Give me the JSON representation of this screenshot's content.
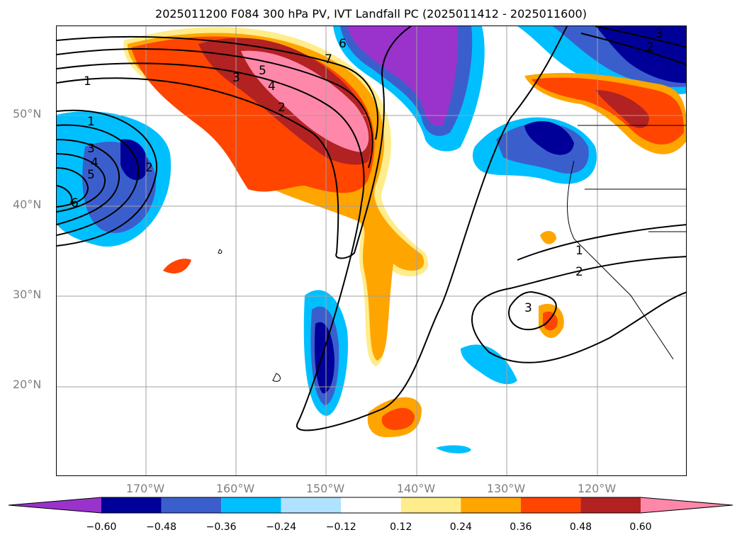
{
  "title": "2025011200 F084 300 hPa PV, IVT Landfall PC (2025011412 - 2025011600)",
  "lat_labels": [
    "50°N",
    "40°N",
    "30°N",
    "20°N"
  ],
  "lon_labels": [
    "170°W",
    "160°W",
    "150°W",
    "140°W",
    "130°W",
    "120°W"
  ],
  "colorbar": {
    "ticks": [
      "−0.60",
      "−0.48",
      "−0.36",
      "−0.24",
      "−0.12",
      "0.12",
      "0.24",
      "0.36",
      "0.48",
      "0.60"
    ],
    "colors": [
      "#9933cc",
      "#000099",
      "#3a5fcd",
      "#00bfff",
      "#b0e2ff",
      "#ffffff",
      "#ffec8b",
      "#ffa500",
      "#ff4500",
      "#b22222",
      "#ff88aa"
    ]
  },
  "contour_labels": [
    "1",
    "1",
    "3",
    "4",
    "5",
    "6",
    "2",
    "3",
    "5",
    "4",
    "2",
    "7",
    "6",
    "3",
    "2",
    "1",
    "2",
    "3"
  ]
}
